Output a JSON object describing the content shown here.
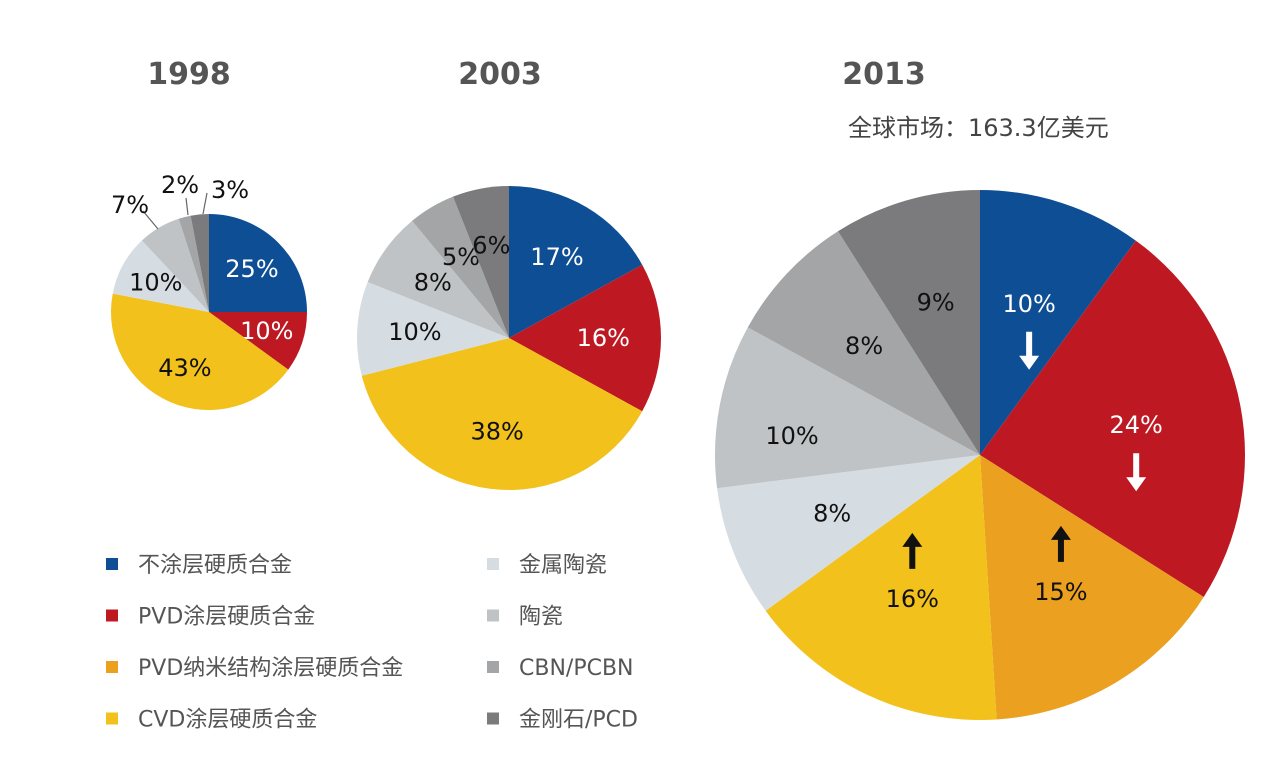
{
  "legend": [
    {
      "label": "不涂层硬质合金",
      "color": "#0e4e94"
    },
    {
      "label": "PVD涂层硬质合金",
      "color": "#be1822"
    },
    {
      "label": "PVD纳米结构涂层硬质合金",
      "color": "#eba020"
    },
    {
      "label": "CVD涂层硬质合金",
      "color": "#f2c11c"
    },
    {
      "label": "金属陶瓷",
      "color": "#d6dde2"
    },
    {
      "label": "陶瓷",
      "color": "#bfc3c5"
    },
    {
      "label": "CBN/PCBN",
      "color": "#a4a5a6"
    },
    {
      "label": "金刚石/PCD",
      "color": "#7b7b7e"
    }
  ],
  "chart_data": [
    {
      "type": "pie",
      "title": "1998",
      "subtitle": "",
      "slices": [
        {
          "category": "不涂层硬质合金",
          "value": 25,
          "label": "25%"
        },
        {
          "category": "PVD涂层硬质合金",
          "value": 10,
          "label": "10%"
        },
        {
          "category": "CVD涂层硬质合金",
          "value": 43,
          "label": "43%"
        },
        {
          "category": "金属陶瓷",
          "value": 10,
          "label": "10%"
        },
        {
          "category": "陶瓷",
          "value": 7,
          "label": "7%"
        },
        {
          "category": "CBN/PCBN",
          "value": 2,
          "label": "2%"
        },
        {
          "category": "金刚石/PCD",
          "value": 3,
          "label": "3%"
        }
      ]
    },
    {
      "type": "pie",
      "title": "2003",
      "subtitle": "",
      "slices": [
        {
          "category": "不涂层硬质合金",
          "value": 17,
          "label": "17%"
        },
        {
          "category": "PVD涂层硬质合金",
          "value": 16,
          "label": "16%"
        },
        {
          "category": "CVD涂层硬质合金",
          "value": 38,
          "label": "38%"
        },
        {
          "category": "金属陶瓷",
          "value": 10,
          "label": "10%"
        },
        {
          "category": "陶瓷",
          "value": 8,
          "label": "8%"
        },
        {
          "category": "CBN/PCBN",
          "value": 5,
          "label": "5%"
        },
        {
          "category": "金刚石/PCD",
          "value": 6,
          "label": "6%"
        }
      ]
    },
    {
      "type": "pie",
      "title": "2013",
      "subtitle": "全球市场：163.3亿美元",
      "slices": [
        {
          "category": "不涂层硬质合金",
          "value": 10,
          "label": "10%",
          "trend": "down"
        },
        {
          "category": "PVD涂层硬质合金",
          "value": 24,
          "label": "24%",
          "trend": "down"
        },
        {
          "category": "PVD纳米结构涂层硬质合金",
          "value": 15,
          "label": "15%",
          "trend": "up"
        },
        {
          "category": "CVD涂层硬质合金",
          "value": 16,
          "label": "16%",
          "trend": "up"
        },
        {
          "category": "金属陶瓷",
          "value": 8,
          "label": "8%"
        },
        {
          "category": "陶瓷",
          "value": 10,
          "label": "10%"
        },
        {
          "category": "CBN/PCBN",
          "value": 8,
          "label": "8%"
        },
        {
          "category": "金刚石/PCD",
          "value": 9,
          "label": "9%"
        }
      ]
    }
  ]
}
